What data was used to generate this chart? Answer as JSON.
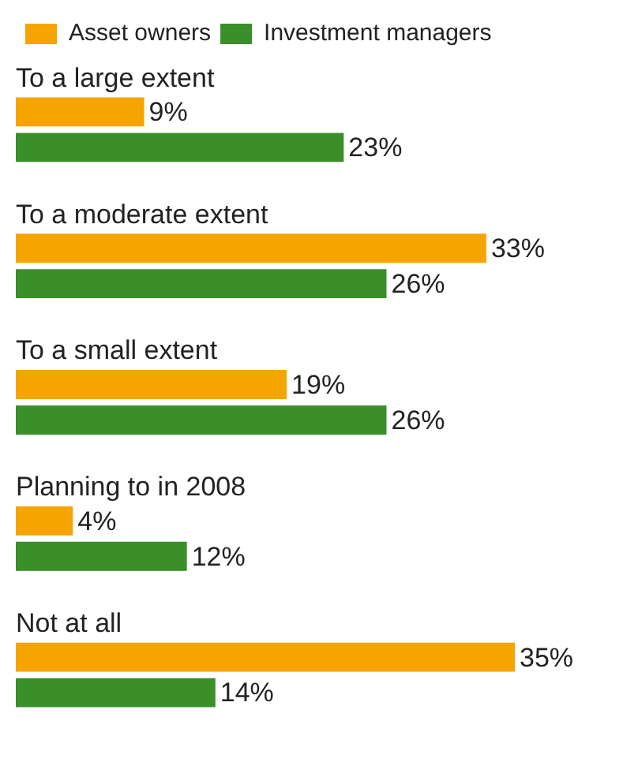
{
  "chart_data": {
    "type": "bar",
    "orientation": "horizontal",
    "categories": [
      "To a large extent",
      "To a moderate extent",
      "To a small extent",
      "Planning to in 2008",
      "Not at all"
    ],
    "series": [
      {
        "name": "Asset owners",
        "color": "#f5a400",
        "values": [
          9,
          33,
          19,
          4,
          35
        ],
        "value_labels": [
          "9%",
          "33%",
          "19%",
          "4%",
          "35%"
        ]
      },
      {
        "name": "Investment managers",
        "color": "#3a8f2a",
        "values": [
          23,
          26,
          26,
          12,
          14
        ],
        "value_labels": [
          "23%",
          "26%",
          "26%",
          "12%",
          "14%"
        ]
      }
    ],
    "legend": "top left"
  }
}
